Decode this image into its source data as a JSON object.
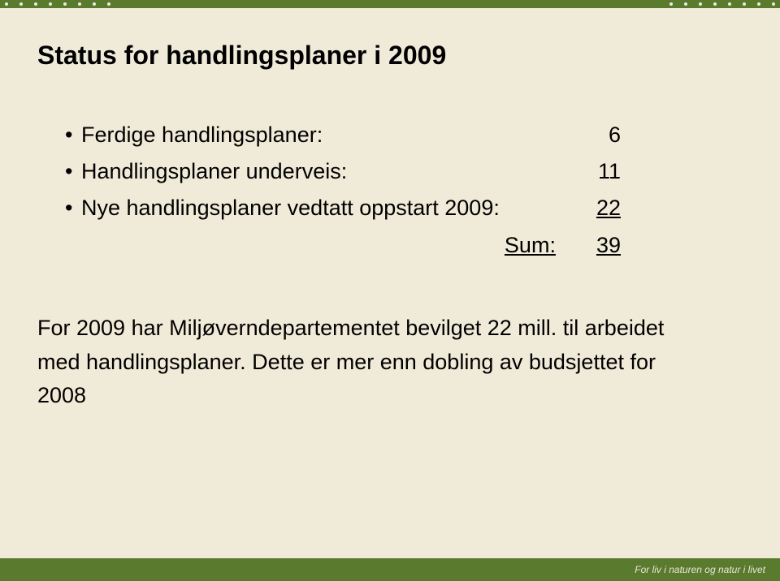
{
  "colors": {
    "background": "#f0ead8",
    "bar": "#5a7a2e",
    "dot": "#f0ead8",
    "text": "#000000",
    "tagline": "#e9e6d6"
  },
  "typography": {
    "title_fontsize": 32,
    "title_weight": "bold",
    "body_fontsize": 27,
    "tagline_fontsize": 12,
    "font_family": "Arial"
  },
  "title": "Status for handlingsplaner i 2009",
  "bullets": [
    {
      "label": "Ferdige handlingsplaner:",
      "value": "6"
    },
    {
      "label": "Handlingsplaner underveis:",
      "value": "11"
    },
    {
      "label": "Nye handlingsplaner vedtatt oppstart 2009:",
      "value": "22",
      "value_underlined": true
    }
  ],
  "sum": {
    "label": "Sum:",
    "value": "39",
    "underlined": true
  },
  "paragraph": "For 2009 har Miljøverndepartementet bevilget 22 mill. til arbeidet med handlingsplaner. Dette er mer enn dobling av budsjettet for 2008",
  "footer_tagline": "For liv i naturen og natur i livet"
}
